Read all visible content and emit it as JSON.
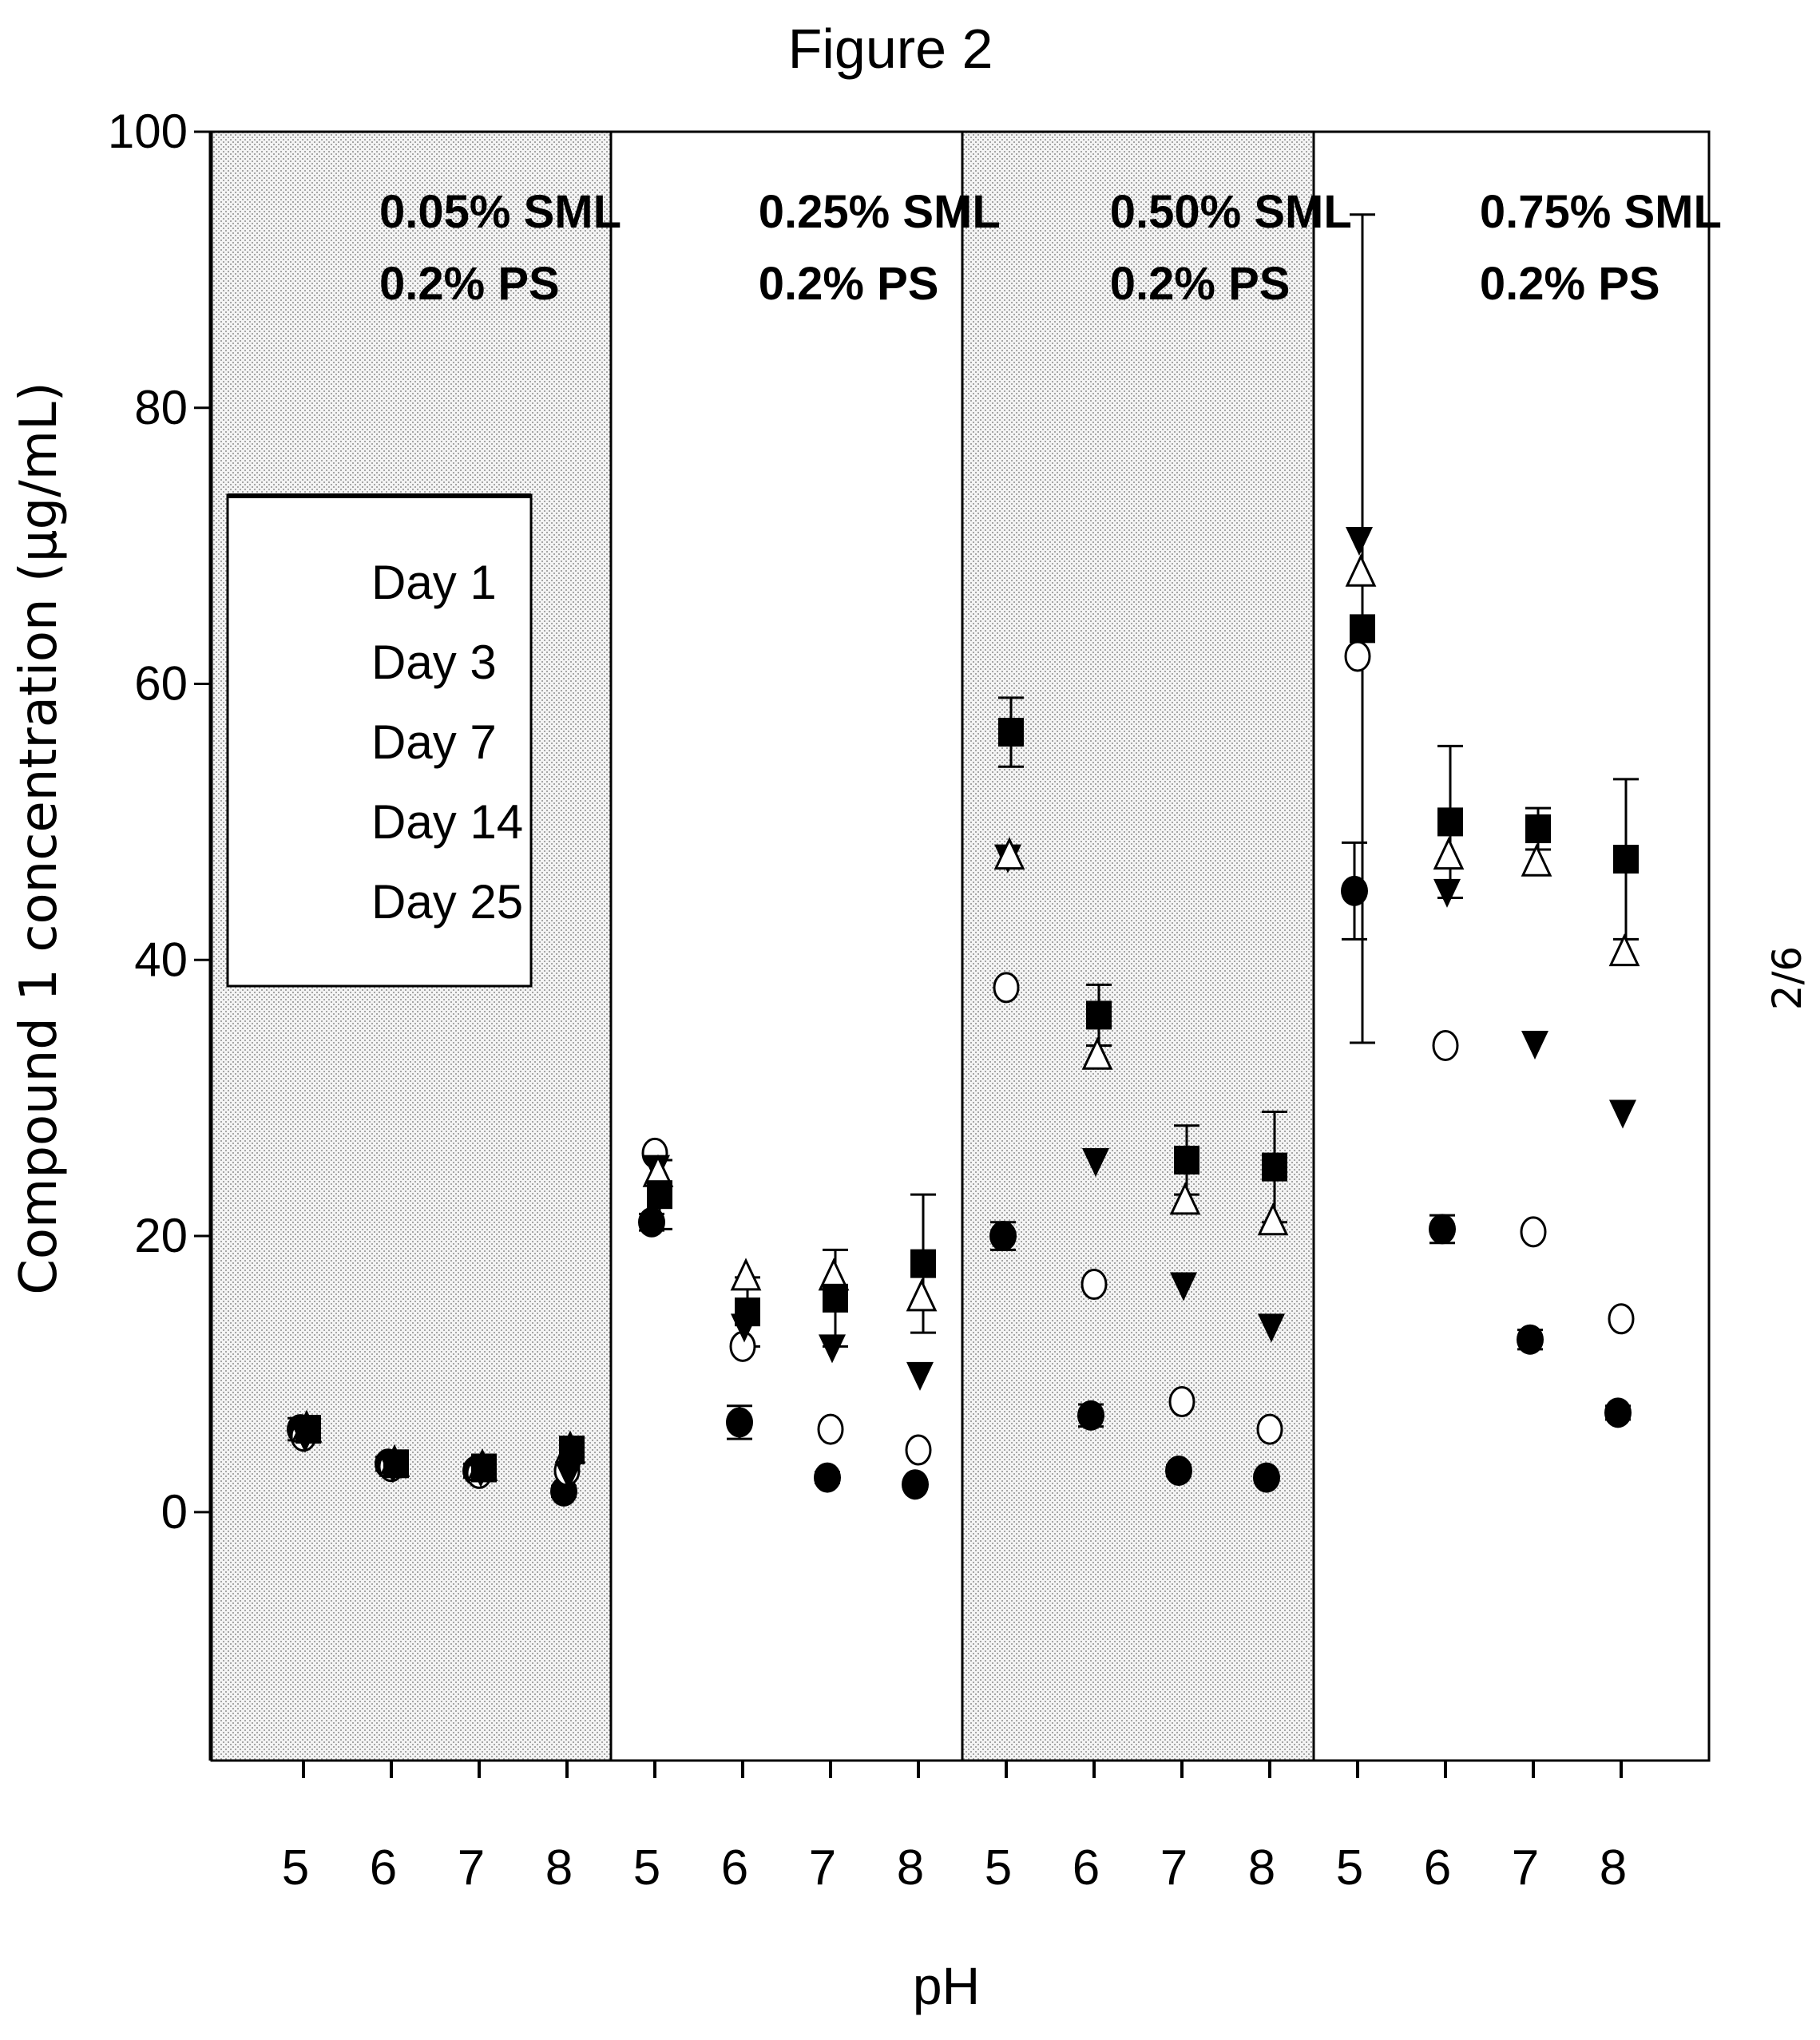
{
  "figure_title": "Figure 2",
  "page_number": "2/6",
  "chart_data": {
    "type": "scatter",
    "ylabel": "Compound 1 concentration (µg/mL)",
    "xlabel": "pH",
    "ylim": [
      -18,
      100
    ],
    "yticks": [
      0,
      20,
      40,
      60,
      80,
      100
    ],
    "x_tick_labels": [
      "5",
      "6",
      "7",
      "8",
      "5",
      "6",
      "7",
      "8",
      "5",
      "6",
      "7",
      "8",
      "5",
      "6",
      "7",
      "8"
    ],
    "grid": false,
    "legend_position": "left",
    "panels": [
      {
        "label_line1": "0.05% SML",
        "label_line2": "0.2% PS",
        "shaded": true
      },
      {
        "label_line1": "0.25% SML",
        "label_line2": "0.2% PS",
        "shaded": false
      },
      {
        "label_line1": "0.50% SML",
        "label_line2": "0.2% PS",
        "shaded": true
      },
      {
        "label_line1": "0.75% SML",
        "label_line2": "0.2% PS",
        "shaded": false
      }
    ],
    "series": [
      {
        "name": "Day 1",
        "marker": "filled-circle",
        "values": [
          6,
          3.5,
          3,
          1.5,
          21,
          6.5,
          2.5,
          2,
          20,
          7,
          3,
          2.5,
          45,
          20.5,
          12.5,
          7.2
        ],
        "errors": [
          0.8,
          0.5,
          0.5,
          0.4,
          0.6,
          1.2,
          0.4,
          0.3,
          1.0,
          0.8,
          0.4,
          0.3,
          3.5,
          1.0,
          0.7,
          0.5
        ]
      },
      {
        "name": "Day 3",
        "marker": "open-circle",
        "values": [
          5.5,
          3.3,
          2.8,
          3.0,
          26,
          12,
          6,
          4.5,
          38,
          16.5,
          8,
          6,
          62,
          33.8,
          20.3,
          14
        ]
      },
      {
        "name": "Day 7",
        "marker": "filled-triangle-down",
        "values": [
          5.5,
          3.3,
          3,
          2.8,
          25,
          13.5,
          12,
          10,
          47.5,
          25.5,
          16.5,
          13.5,
          70.5,
          45,
          34,
          29
        ]
      },
      {
        "name": "Day 14",
        "marker": "open-triangle-up",
        "values": [
          6,
          3.5,
          3.2,
          4.5,
          24.5,
          17,
          17,
          15.5,
          47.5,
          33,
          22.5,
          21,
          68,
          47.5,
          47,
          40.5
        ]
      },
      {
        "name": "Day 25",
        "marker": "filled-square",
        "values": [
          6,
          3.5,
          3.2,
          4.5,
          23,
          14.5,
          15.5,
          18,
          56.5,
          36,
          25.5,
          25,
          64,
          50,
          49.5,
          47.3
        ],
        "errors": [
          0.5,
          0.4,
          0.4,
          0.5,
          2.5,
          2.5,
          3.5,
          5,
          2.5,
          2.2,
          2.5,
          4,
          30,
          5.5,
          1.5,
          5.8
        ]
      }
    ]
  }
}
